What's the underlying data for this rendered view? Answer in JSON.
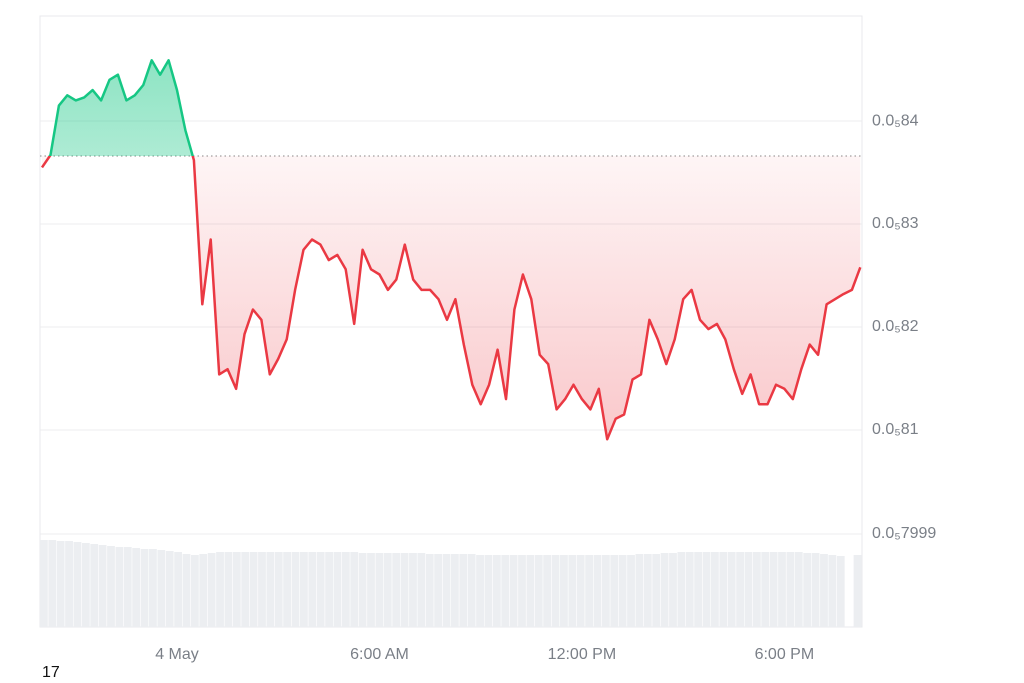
{
  "chart_data": {
    "type": "line",
    "x": [
      -4,
      -3.75,
      -3.5,
      -3.25,
      -3,
      -2.75,
      -2.5,
      -2.25,
      -2,
      -1.75,
      -1.5,
      -1.25,
      -1,
      -0.75,
      -0.5,
      -0.25,
      0,
      0.25,
      0.5,
      0.75,
      1,
      1.25,
      1.5,
      1.75,
      2,
      2.25,
      2.5,
      2.75,
      3,
      3.25,
      3.5,
      3.75,
      4,
      4.25,
      4.5,
      4.75,
      5,
      5.25,
      5.5,
      5.75,
      6,
      6.25,
      6.5,
      6.75,
      7,
      7.25,
      7.5,
      7.75,
      8,
      8.25,
      8.5,
      8.75,
      9,
      9.25,
      9.5,
      9.75,
      10,
      10.25,
      10.5,
      10.75,
      11,
      11.25,
      11.5,
      11.75,
      12,
      12.25,
      12.5,
      12.75,
      13,
      13.25,
      13.5,
      13.75,
      14,
      14.25,
      14.5,
      14.75,
      15,
      15.25,
      15.5,
      15.75,
      16,
      16.25,
      16.5,
      16.75,
      17,
      17.25,
      17.5,
      17.75,
      18,
      18.25,
      18.5,
      18.75,
      19,
      19.25,
      19.5,
      19.75,
      20,
      20.25
    ],
    "values": [
      8.355e-07,
      8.367e-07,
      8.415e-07,
      8.425e-07,
      8.42e-07,
      8.423e-07,
      8.43e-07,
      8.42e-07,
      8.44e-07,
      8.445e-07,
      8.42e-07,
      8.425e-07,
      8.435e-07,
      8.459e-07,
      8.445e-07,
      8.459e-07,
      8.43e-07,
      8.391e-07,
      8.362e-07,
      8.222e-07,
      8.285e-07,
      8.154e-07,
      8.159e-07,
      8.14e-07,
      8.193e-07,
      8.217e-07,
      8.207e-07,
      8.154e-07,
      8.169e-07,
      8.188e-07,
      8.236e-07,
      8.275e-07,
      8.285e-07,
      8.28e-07,
      8.265e-07,
      8.27e-07,
      8.256e-07,
      8.203e-07,
      8.275e-07,
      8.256e-07,
      8.251e-07,
      8.236e-07,
      8.246e-07,
      8.28e-07,
      8.246e-07,
      8.236e-07,
      8.236e-07,
      8.227e-07,
      8.207e-07,
      8.227e-07,
      8.183e-07,
      8.144e-07,
      8.125e-07,
      8.144e-07,
      8.178e-07,
      8.13e-07,
      8.217e-07,
      8.251e-07,
      8.227e-07,
      8.173e-07,
      8.164e-07,
      8.12e-07,
      8.13e-07,
      8.144e-07,
      8.13e-07,
      8.12e-07,
      8.14e-07,
      8.091e-07,
      8.111e-07,
      8.115e-07,
      8.149e-07,
      8.154e-07,
      8.207e-07,
      8.188e-07,
      8.164e-07,
      8.188e-07,
      8.227e-07,
      8.236e-07,
      8.207e-07,
      8.198e-07,
      8.203e-07,
      8.188e-07,
      8.159e-07,
      8.135e-07,
      8.154e-07,
      8.125e-07,
      8.125e-07,
      8.144e-07,
      8.14e-07,
      8.13e-07,
      8.159e-07,
      8.183e-07,
      8.173e-07,
      8.222e-07,
      8.227e-07,
      8.232e-07,
      8.236e-07,
      8.258e-07
    ],
    "volume": [
      87,
      87,
      86,
      86,
      85,
      84,
      83,
      82,
      81,
      80,
      80,
      79,
      78,
      78,
      77,
      76,
      75,
      73,
      72,
      73,
      74,
      75,
      75,
      75,
      75,
      75,
      75,
      75,
      75,
      75,
      75,
      75,
      75,
      75,
      75,
      75,
      75,
      75,
      74,
      74,
      74,
      74,
      74,
      74,
      74,
      74,
      73,
      73,
      73,
      73,
      73,
      73,
      72,
      72,
      72,
      72,
      72,
      72,
      72,
      72,
      72,
      72,
      72,
      72,
      72,
      72,
      72,
      72,
      72,
      72,
      72,
      73,
      73,
      73,
      74,
      74,
      75,
      75,
      75,
      75,
      75,
      75,
      75,
      75,
      75,
      75,
      75,
      75,
      75,
      75,
      75,
      74,
      74,
      73,
      72,
      71,
      0,
      72
    ],
    "baseline": 8.366e-07,
    "up_color": "#16c784",
    "down_color": "#ea3943",
    "volume_color": "#eceef1",
    "xlim": [
      -4.06,
      20.3
    ],
    "xticks": [
      {
        "value": 0,
        "label": "4 May"
      },
      {
        "value": 6,
        "label": "6:00 AM"
      },
      {
        "value": 12,
        "label": "12:00 PM"
      },
      {
        "value": 18,
        "label": "6:00 PM"
      }
    ],
    "ylim": [
      7.999e-07,
      8.502e-07
    ],
    "yticks": [
      {
        "value": 8.4e-07,
        "label": "0.0₅84"
      },
      {
        "value": 8.3e-07,
        "label": "0.0₅83"
      },
      {
        "value": 8.2e-07,
        "label": "0.0₅82"
      },
      {
        "value": 8.1e-07,
        "label": "0.0₅81"
      },
      {
        "value": 7.999e-07,
        "label": "0.0₅7999"
      }
    ],
    "grid": true
  },
  "footer": "17"
}
